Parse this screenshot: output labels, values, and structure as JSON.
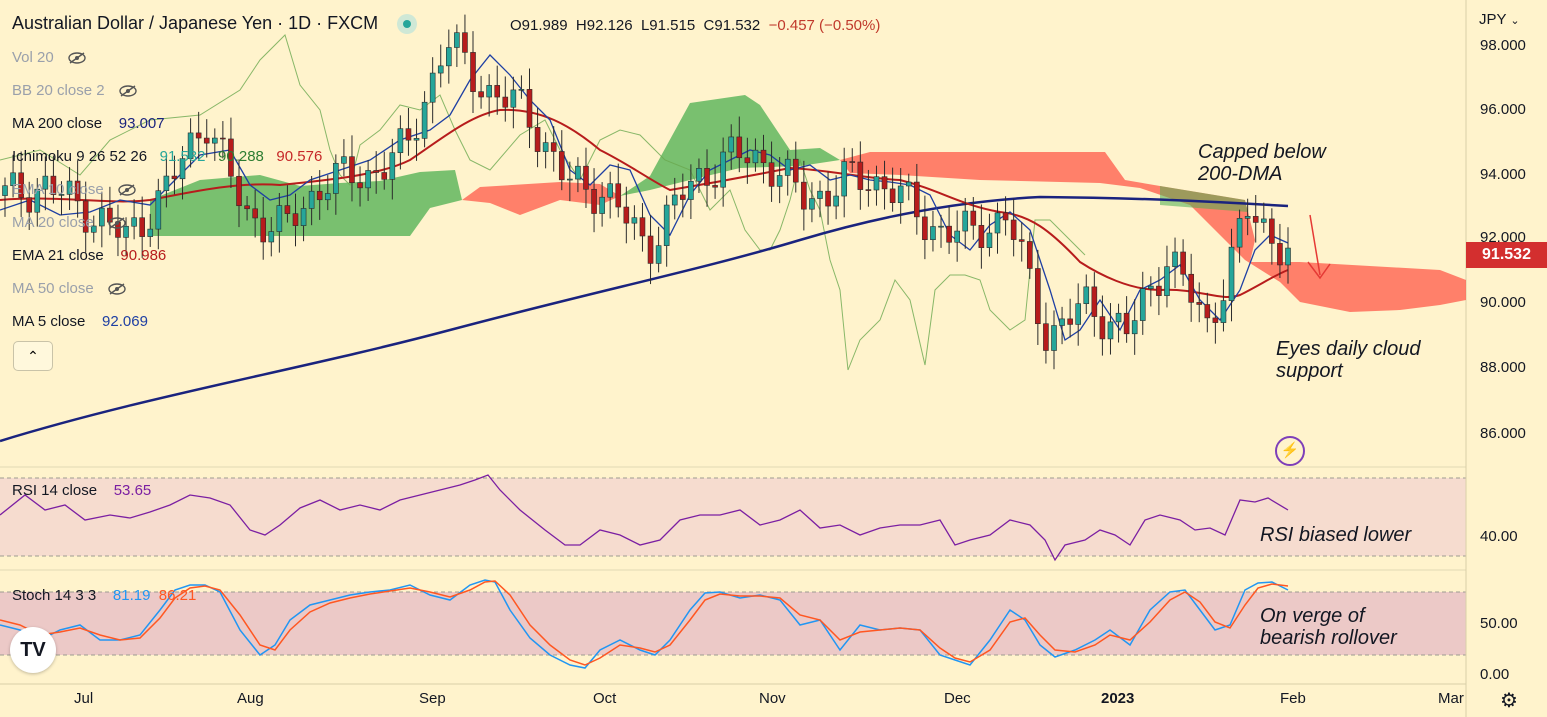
{
  "header": {
    "title": "Australian Dollar / Japanese Yen · 1D · FXCM",
    "open": "O91.989",
    "high": "H92.126",
    "low": "L91.515",
    "close": "C91.532",
    "change": "−0.457 (−0.50%)"
  },
  "legend": {
    "vol": "Vol 20",
    "bb": "BB 20 close 2",
    "ma200_label": "MA 200 close",
    "ma200_value": "93.007",
    "ichimoku_label": "Ichimoku 9 26 52 26",
    "ichimoku_v1": "91.532",
    "ichimoku_v2": "90.288",
    "ichimoku_v3": "90.576",
    "ema10": "EMA 10 close",
    "ma20": "MA 20 close",
    "ema21_label": "EMA 21 close",
    "ema21_value": "90.986",
    "ma50": "MA 50 close",
    "ma5_label": "MA 5 close",
    "ma5_value": "92.069"
  },
  "rsi": {
    "label": "RSI 14 close",
    "value": "53.65",
    "level": "40.00"
  },
  "stoch": {
    "label": "Stoch 14 3 3",
    "k": "81.19",
    "d": "86.21",
    "levels": [
      "50.00",
      "0.00"
    ]
  },
  "notes": {
    "capped": [
      "Capped below",
      "200-DMA"
    ],
    "eyes": [
      "Eyes daily cloud",
      "support"
    ],
    "rsi_note": "RSI biased lower",
    "stoch_note": [
      "On verge of",
      "bearish rollover"
    ]
  },
  "price_axis": {
    "currency": "JPY",
    "labels": [
      "98.000",
      "96.000",
      "94.000",
      "92.000",
      "90.000",
      "88.000",
      "86.000"
    ],
    "last_price": "91.532"
  },
  "time_axis": [
    "Jul",
    "Aug",
    "Sep",
    "Oct",
    "Nov",
    "Dec",
    "2023",
    "Feb",
    "Mar"
  ],
  "colors": {
    "background": "#fff3cc",
    "bull": "#26a69a",
    "bear": "#b71c1c",
    "ma200": "#1a237e",
    "ema21": "#b71c1c",
    "ma5": "#1e3fa3",
    "cloud_bull": "#4caf50",
    "cloud_bear": "#ff5a4a",
    "rsi": "#7b1fa2",
    "stoch_k": "#2196f3",
    "stoch_d": "#ff5722"
  },
  "chart_data": {
    "type": "candlestick",
    "symbol": "AUDJPY",
    "timeframe": "1D",
    "ylim": [
      85,
      99
    ],
    "ohlc_last": {
      "open": 91.989,
      "high": 92.126,
      "low": 91.515,
      "close": 91.532
    },
    "price_series": [
      {
        "t": "2022-06-20",
        "c": 93.2
      },
      {
        "t": "2022-06-27",
        "c": 93.5
      },
      {
        "t": "2022-07-04",
        "c": 92.8
      },
      {
        "t": "2022-07-11",
        "c": 91.9
      },
      {
        "t": "2022-07-18",
        "c": 93.3
      },
      {
        "t": "2022-07-25",
        "c": 95.6
      },
      {
        "t": "2022-08-01",
        "c": 92.6
      },
      {
        "t": "2022-08-08",
        "c": 92.2
      },
      {
        "t": "2022-08-15",
        "c": 93.7
      },
      {
        "t": "2022-08-22",
        "c": 93.8
      },
      {
        "t": "2022-08-29",
        "c": 94.6
      },
      {
        "t": "2022-09-05",
        "c": 97.9
      },
      {
        "t": "2022-09-12",
        "c": 96.4
      },
      {
        "t": "2022-09-19",
        "c": 95.8
      },
      {
        "t": "2022-09-26",
        "c": 93.6
      },
      {
        "t": "2022-10-03",
        "c": 93.3
      },
      {
        "t": "2022-10-10",
        "c": 91.6
      },
      {
        "t": "2022-10-17",
        "c": 93.4
      },
      {
        "t": "2022-10-24",
        "c": 94.4
      },
      {
        "t": "2022-10-31",
        "c": 94.3
      },
      {
        "t": "2022-11-07",
        "c": 93.0
      },
      {
        "t": "2022-11-14",
        "c": 93.7
      },
      {
        "t": "2022-11-21",
        "c": 93.6
      },
      {
        "t": "2022-11-28",
        "c": 92.3
      },
      {
        "t": "2022-12-05",
        "c": 92.0
      },
      {
        "t": "2022-12-12",
        "c": 92.6
      },
      {
        "t": "2022-12-19",
        "c": 88.9
      },
      {
        "t": "2022-12-26",
        "c": 89.9
      },
      {
        "t": "2023-01-02",
        "c": 89.0
      },
      {
        "t": "2023-01-09",
        "c": 91.4
      },
      {
        "t": "2023-01-16",
        "c": 89.2
      },
      {
        "t": "2023-01-23",
        "c": 92.7
      },
      {
        "t": "2023-01-30",
        "c": 91.5
      }
    ],
    "ma200": [
      {
        "t": "2022-06-20",
        "v": 85.8
      },
      {
        "t": "2022-08-15",
        "v": 86.9
      },
      {
        "t": "2022-09-19",
        "v": 88.0
      },
      {
        "t": "2022-10-24",
        "v": 90.3
      },
      {
        "t": "2022-11-28",
        "v": 92.6
      },
      {
        "t": "2022-12-26",
        "v": 93.1
      },
      {
        "t": "2023-01-31",
        "v": 93.0
      }
    ],
    "rsi_series": [
      55,
      58,
      52,
      60,
      56,
      48,
      62,
      55,
      58,
      54,
      72,
      60,
      48,
      40,
      38,
      45,
      52,
      56,
      52,
      50,
      55,
      52,
      42,
      44,
      30,
      42,
      48,
      40,
      53,
      55,
      42,
      58,
      53.65
    ],
    "stoch_series": {
      "k": [
        50,
        40,
        65,
        85,
        75,
        15,
        55,
        80,
        85,
        95,
        70,
        30,
        10,
        30,
        20,
        75,
        90,
        60,
        40,
        70,
        55,
        30,
        10,
        45,
        20,
        55,
        40,
        60,
        90,
        40,
        60,
        95,
        81.19
      ],
      "d": [
        55,
        45,
        60,
        80,
        80,
        30,
        45,
        75,
        82,
        92,
        80,
        40,
        15,
        25,
        25,
        65,
        88,
        70,
        45,
        65,
        58,
        35,
        15,
        40,
        25,
        50,
        45,
        55,
        85,
        50,
        55,
        92,
        86.21
      ]
    }
  }
}
